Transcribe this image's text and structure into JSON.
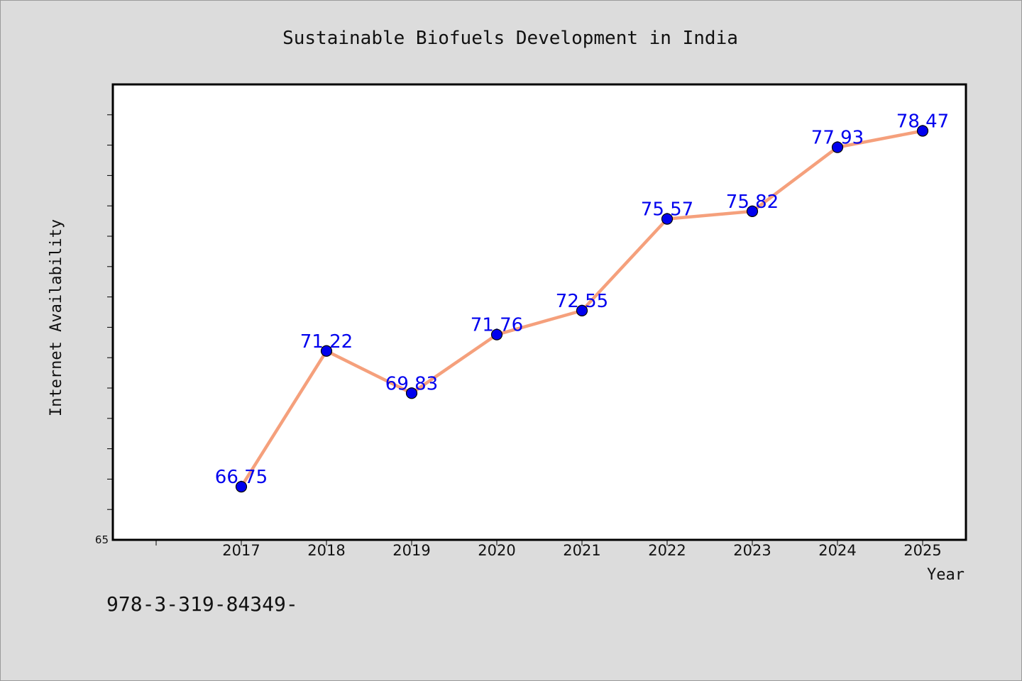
{
  "chart_data": {
    "type": "line",
    "title": "Sustainable Biofuels Development in India",
    "xlabel": "Year",
    "ylabel": "Internet Availability",
    "categories": [
      "2017",
      "2018",
      "2019",
      "2020",
      "2021",
      "2022",
      "2023",
      "2024",
      "2025"
    ],
    "series": [
      {
        "values": [
          66.75,
          71.22,
          69.83,
          71.76,
          72.55,
          75.57,
          75.82,
          77.93,
          78.47
        ],
        "data_labels": [
          "66.75",
          "71.22",
          "69.83",
          "71.76",
          "72.55",
          "75.57",
          "75.82",
          "77.93",
          "78.47"
        ]
      }
    ],
    "ylim": [
      65,
      80
    ],
    "y_tick_labels": [
      "65"
    ],
    "grid": false,
    "line_color": "#f5a07c",
    "marker_color": "#0000ee",
    "label_color": "#0000ee"
  },
  "footer": {
    "text": "978-3-319-84349-"
  }
}
